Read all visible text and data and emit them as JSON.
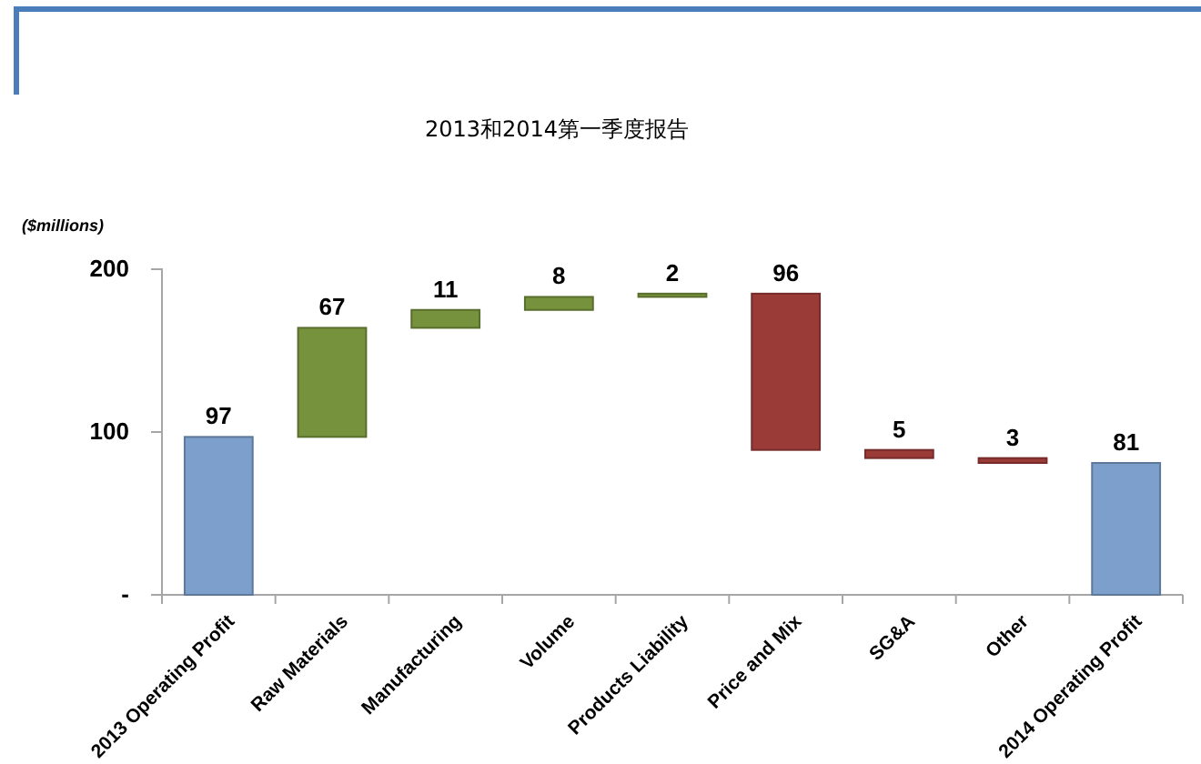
{
  "chart_data": {
    "type": "bar",
    "title": "2013和2014第一季度报告",
    "ylabel": "($millions)",
    "categories": [
      "2013 Operating Profit",
      "Raw Materials",
      "Manufacturing",
      "Volume",
      "Products Liability",
      "Price and Mix",
      "SG&A",
      "Other",
      "2014 Operating Profit"
    ],
    "values": [
      97,
      67,
      11,
      8,
      2,
      96,
      5,
      3,
      81
    ],
    "base": [
      0,
      97,
      164,
      175,
      183,
      89,
      84,
      81,
      0
    ],
    "colors": [
      "#7d9fcb",
      "#76923c",
      "#76923c",
      "#76923c",
      "#76923c",
      "#9b3b38",
      "#9b3b38",
      "#9b3b38",
      "#7d9fcb"
    ],
    "ylim": [
      0,
      200
    ],
    "yticks": [
      {
        "value": 0,
        "label": "-"
      },
      100,
      200
    ],
    "data_labels": true
  }
}
